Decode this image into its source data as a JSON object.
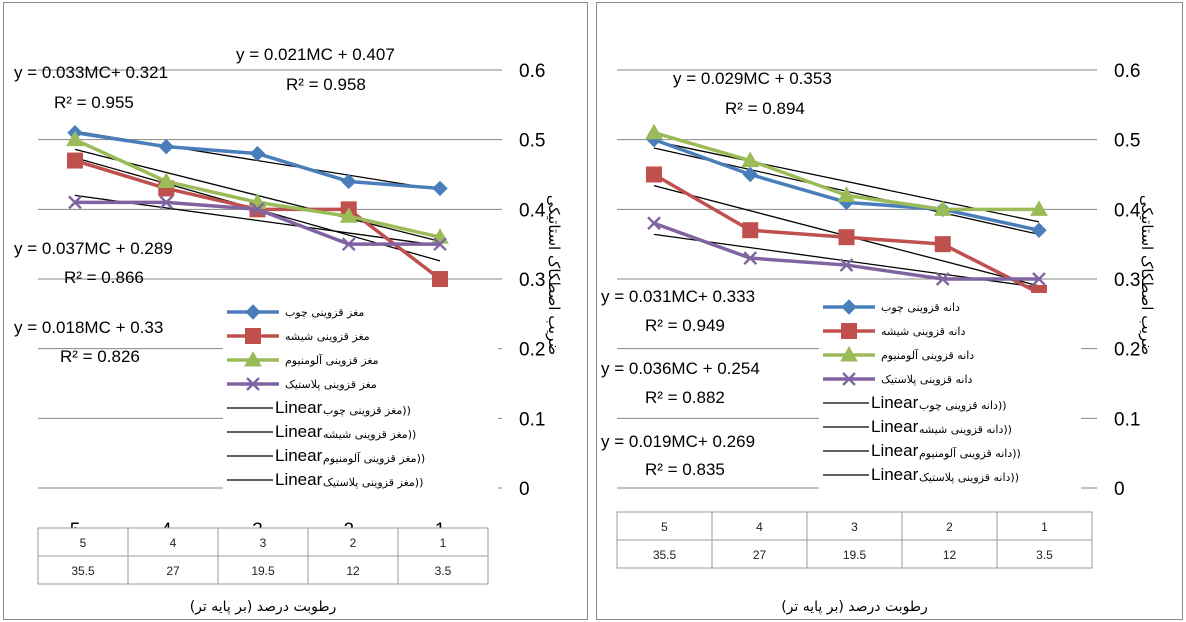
{
  "chart_data": [
    {
      "type": "line",
      "panel": "left",
      "title": "",
      "xlabel": "رطوبت درصد (بر پایه تر)",
      "ylabel": "ضریب اصطکاک استاتیکی",
      "ylim": [
        0,
        0.6
      ],
      "yticks": [
        "0",
        "0.1",
        "0.2",
        "0.3",
        "0.4",
        "0.5",
        "0.6"
      ],
      "categories": [
        "5",
        "4",
        "3",
        "2",
        "1"
      ],
      "table_rows": [
        [
          "5",
          "4",
          "3",
          "2",
          "1"
        ],
        [
          "35.5",
          "27",
          "19.5",
          "12",
          "3.5"
        ]
      ],
      "series": [
        {
          "name": "مغز قزوینی چوب",
          "color": "#4a7ebb",
          "marker": "diamond",
          "values": [
            0.51,
            0.49,
            0.48,
            0.44,
            0.43
          ]
        },
        {
          "name": "مغز قزوینی شیشه",
          "color": "#c0504d",
          "marker": "square",
          "values": [
            0.47,
            0.43,
            0.4,
            0.4,
            0.3
          ]
        },
        {
          "name": "مغز قزوینی آلومنیوم",
          "color": "#9bbb59",
          "marker": "triangle",
          "values": [
            0.5,
            0.44,
            0.41,
            0.39,
            0.36
          ]
        },
        {
          "name": "مغز قزوینی پلاستیک",
          "color": "#8064a2",
          "marker": "x",
          "values": [
            0.41,
            0.41,
            0.4,
            0.35,
            0.35
          ]
        }
      ],
      "trendlines": [
        {
          "label": "Linear (مغز قزوینی چوب)",
          "legend_text": "مغز قزوینی چوب))",
          "slope": 0.021,
          "intercept": 0.407
        },
        {
          "label": "Linear (مغز قزوینی شیشه)",
          "legend_text": "مغز قزوینی شیشه))",
          "slope": 0.033,
          "intercept": 0.321
        },
        {
          "label": "Linear (مغز قزوینی آلومنیوم)",
          "legend_text": "مغز قزوینی آلومنیوم))",
          "slope": 0.037,
          "intercept": 0.289
        },
        {
          "label": "Linear (مغز قزوینی پلاستیک)",
          "legend_text": "مغز قزوینی پلاستیک))",
          "slope": 0.018,
          "intercept": 0.33
        }
      ],
      "linear_word": "Linear",
      "equations": [
        {
          "eq": "y = 0.033MC+ 0.321",
          "r2": "R² = 0.955"
        },
        {
          "eq": "y = 0.021MC + 0.407",
          "r2": "R² = 0.958"
        },
        {
          "eq": "y = 0.037MC + 0.289",
          "r2": "R² = 0.866"
        },
        {
          "eq": "y = 0.018MC + 0.33",
          "r2": "R² = 0.826"
        }
      ]
    },
    {
      "type": "line",
      "panel": "right",
      "title": "",
      "xlabel": "رطوبت درصد (بر پایه تر)",
      "ylabel": "ضریب اصطکاک استاتیکی",
      "ylim": [
        0,
        0.6
      ],
      "yticks": [
        "0",
        "0.1",
        "0.2",
        "0.3",
        "0.4",
        "0.5",
        "0.6"
      ],
      "categories": [
        "5",
        "4",
        "3",
        "2",
        "1"
      ],
      "table_rows": [
        [
          "5",
          "4",
          "3",
          "2",
          "1"
        ],
        [
          "35.5",
          "27",
          "19.5",
          "12",
          "3.5"
        ]
      ],
      "series": [
        {
          "name": "دانه قزوینی چوب",
          "color": "#4a7ebb",
          "marker": "diamond",
          "values": [
            0.5,
            0.45,
            0.41,
            0.4,
            0.37
          ]
        },
        {
          "name": "دانه قزوینی شیشه",
          "color": "#c0504d",
          "marker": "square",
          "values": [
            0.45,
            0.37,
            0.36,
            0.35,
            0.28
          ]
        },
        {
          "name": "دانه قزوینی آلومنیوم",
          "color": "#9bbb59",
          "marker": "triangle",
          "values": [
            0.51,
            0.47,
            0.42,
            0.4,
            0.4
          ]
        },
        {
          "name": "دانه قزوینی پلاستیک",
          "color": "#8064a2",
          "marker": "x",
          "values": [
            0.38,
            0.33,
            0.32,
            0.3,
            0.3
          ]
        }
      ],
      "trendlines": [
        {
          "label": "Linear (دانه قزوینی چوب)",
          "legend_text": "دانه قزوینی چوب))",
          "slope": 0.029,
          "intercept": 0.353
        },
        {
          "label": "Linear (دانه قزوینی شیشه)",
          "legend_text": "دانه قزوینی شیشه))",
          "slope": 0.036,
          "intercept": 0.254
        },
        {
          "label": "Linear (دانه قزوینی آلومنیوم)",
          "legend_text": "دانه قزوینی آلومنیوم))",
          "slope": 0.031,
          "intercept": 0.333
        },
        {
          "label": "Linear (دانه قزوینی پلاستیک)",
          "legend_text": "دانه قزوینی پلاستیک))",
          "slope": 0.019,
          "intercept": 0.269
        }
      ],
      "linear_word": "Linear",
      "equations": [
        {
          "eq": "y = 0.029MC + 0.353",
          "r2": "R² = 0.894"
        },
        {
          "eq": "y = 0.031MC+ 0.333",
          "r2": "R² = 0.949"
        },
        {
          "eq": "y = 0.036MC + 0.254",
          "r2": "R² = 0.882"
        },
        {
          "eq": "y = 0.019MC+ 0.269",
          "r2": "R² = 0.835"
        }
      ]
    }
  ]
}
